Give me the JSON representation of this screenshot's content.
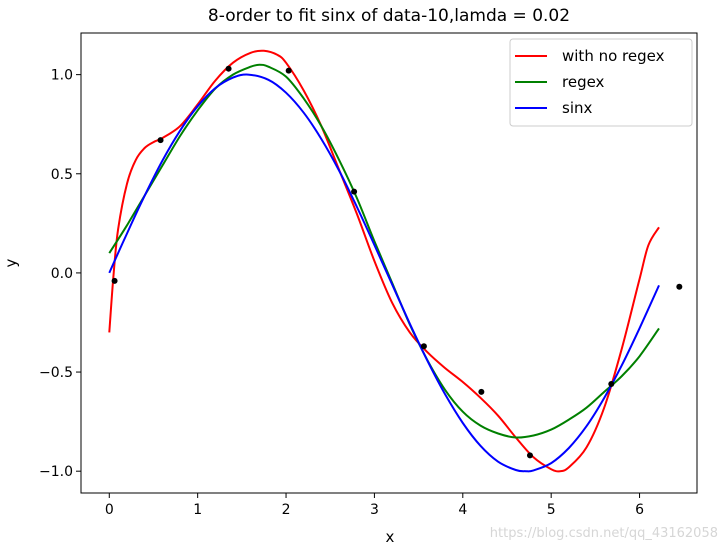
{
  "chart_data": {
    "type": "line",
    "title": "8-order to fit sinx of data-10,lamda = 0.02",
    "xlabel": "x",
    "ylabel": "y",
    "xlim": [
      -0.32,
      6.65
    ],
    "ylim": [
      -1.11,
      1.21
    ],
    "xticks": [
      0,
      1,
      2,
      3,
      4,
      5,
      6
    ],
    "xtick_labels": [
      "0",
      "1",
      "2",
      "3",
      "4",
      "5",
      "6"
    ],
    "yticks": [
      -1.0,
      -0.5,
      0.0,
      0.5,
      1.0
    ],
    "ytick_labels": [
      "−1.0",
      "−0.5",
      "0.0",
      "0.5",
      "1.0"
    ],
    "grid": false,
    "legend_position": "upper right",
    "series": [
      {
        "name": "with no regex",
        "color": "#ff0000",
        "kind": "line",
        "x": [
          0.0,
          0.05,
          0.1,
          0.2,
          0.3,
          0.4,
          0.5,
          0.6,
          0.8,
          1.0,
          1.2,
          1.4,
          1.6,
          1.75,
          1.9,
          2.0,
          2.2,
          2.4,
          2.6,
          2.8,
          3.0,
          3.2,
          3.4,
          3.6,
          3.8,
          4.0,
          4.2,
          4.4,
          4.6,
          4.8,
          5.0,
          5.1,
          5.2,
          5.4,
          5.6,
          5.8,
          6.0,
          6.1,
          6.22
        ],
        "y": [
          -0.3,
          0.0,
          0.22,
          0.45,
          0.57,
          0.63,
          0.66,
          0.68,
          0.74,
          0.85,
          0.97,
          1.06,
          1.11,
          1.12,
          1.1,
          1.06,
          0.92,
          0.74,
          0.52,
          0.3,
          0.06,
          -0.15,
          -0.3,
          -0.4,
          -0.48,
          -0.55,
          -0.63,
          -0.72,
          -0.83,
          -0.93,
          -0.99,
          -1.0,
          -0.98,
          -0.88,
          -0.68,
          -0.38,
          -0.03,
          0.14,
          0.23
        ]
      },
      {
        "name": "regex",
        "color": "#008000",
        "kind": "line",
        "x": [
          0.0,
          0.2,
          0.4,
          0.6,
          0.8,
          1.0,
          1.2,
          1.4,
          1.6,
          1.7,
          1.8,
          2.0,
          2.2,
          2.4,
          2.6,
          2.8,
          3.0,
          3.2,
          3.4,
          3.6,
          3.8,
          4.0,
          4.2,
          4.4,
          4.6,
          4.8,
          5.0,
          5.2,
          5.4,
          5.6,
          5.8,
          6.0,
          6.22
        ],
        "y": [
          0.1,
          0.24,
          0.39,
          0.54,
          0.69,
          0.82,
          0.93,
          1.0,
          1.04,
          1.05,
          1.04,
          0.99,
          0.88,
          0.74,
          0.57,
          0.38,
          0.16,
          -0.05,
          -0.26,
          -0.44,
          -0.59,
          -0.7,
          -0.77,
          -0.81,
          -0.83,
          -0.82,
          -0.79,
          -0.74,
          -0.68,
          -0.6,
          -0.52,
          -0.42,
          -0.28
        ]
      },
      {
        "name": "sinx",
        "color": "#0000ff",
        "kind": "line",
        "x": [
          0.0,
          0.2,
          0.4,
          0.6,
          0.8,
          1.0,
          1.2,
          1.4,
          1.5708,
          1.8,
          2.0,
          2.2,
          2.4,
          2.6,
          2.8,
          3.0,
          3.2,
          3.4,
          3.6,
          3.8,
          4.0,
          4.2,
          4.4,
          4.6,
          4.7124,
          4.8,
          5.0,
          5.2,
          5.4,
          5.6,
          5.8,
          6.0,
          6.22
        ],
        "y": [
          0.0,
          0.199,
          0.389,
          0.565,
          0.717,
          0.841,
          0.932,
          0.985,
          1.0,
          0.974,
          0.909,
          0.808,
          0.675,
          0.516,
          0.335,
          0.141,
          -0.058,
          -0.256,
          -0.443,
          -0.612,
          -0.757,
          -0.872,
          -0.952,
          -0.994,
          -1.0,
          -0.996,
          -0.959,
          -0.883,
          -0.773,
          -0.631,
          -0.465,
          -0.279,
          -0.063
        ]
      },
      {
        "name": "",
        "color": "#000000",
        "kind": "scatter",
        "x": [
          0.06,
          0.58,
          1.35,
          2.03,
          2.77,
          3.56,
          4.21,
          4.76,
          5.68,
          6.45
        ],
        "y": [
          -0.04,
          0.67,
          1.03,
          1.02,
          0.41,
          -0.37,
          -0.6,
          -0.92,
          -0.56,
          -0.07
        ]
      }
    ]
  },
  "watermark": "https://blog.csdn.net/qq_43162058"
}
